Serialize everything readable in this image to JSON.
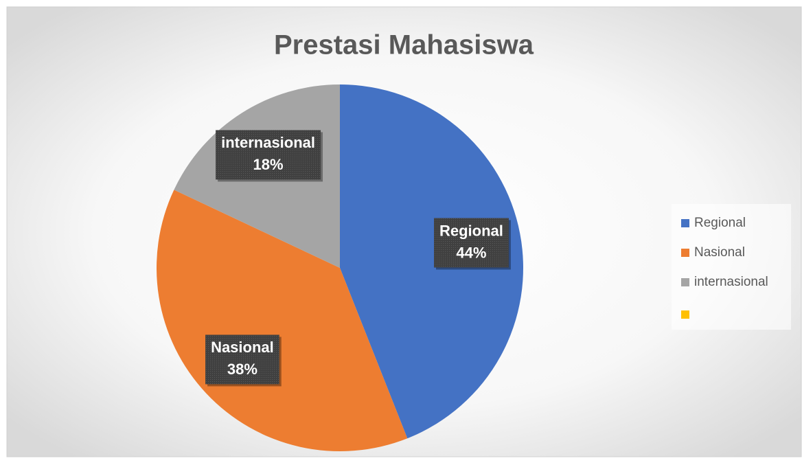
{
  "chart_data": {
    "type": "pie",
    "title": "Prestasi Mahasiswa",
    "categories": [
      "Regional",
      "Nasional",
      "internasional",
      null
    ],
    "values": [
      44,
      38,
      18,
      0
    ],
    "value_labels": [
      "44%",
      "38%",
      "18%",
      null
    ],
    "colors": [
      "#4472c4",
      "#ed7d31",
      "#a5a5a5",
      "#ffc000"
    ],
    "legend": "right"
  }
}
